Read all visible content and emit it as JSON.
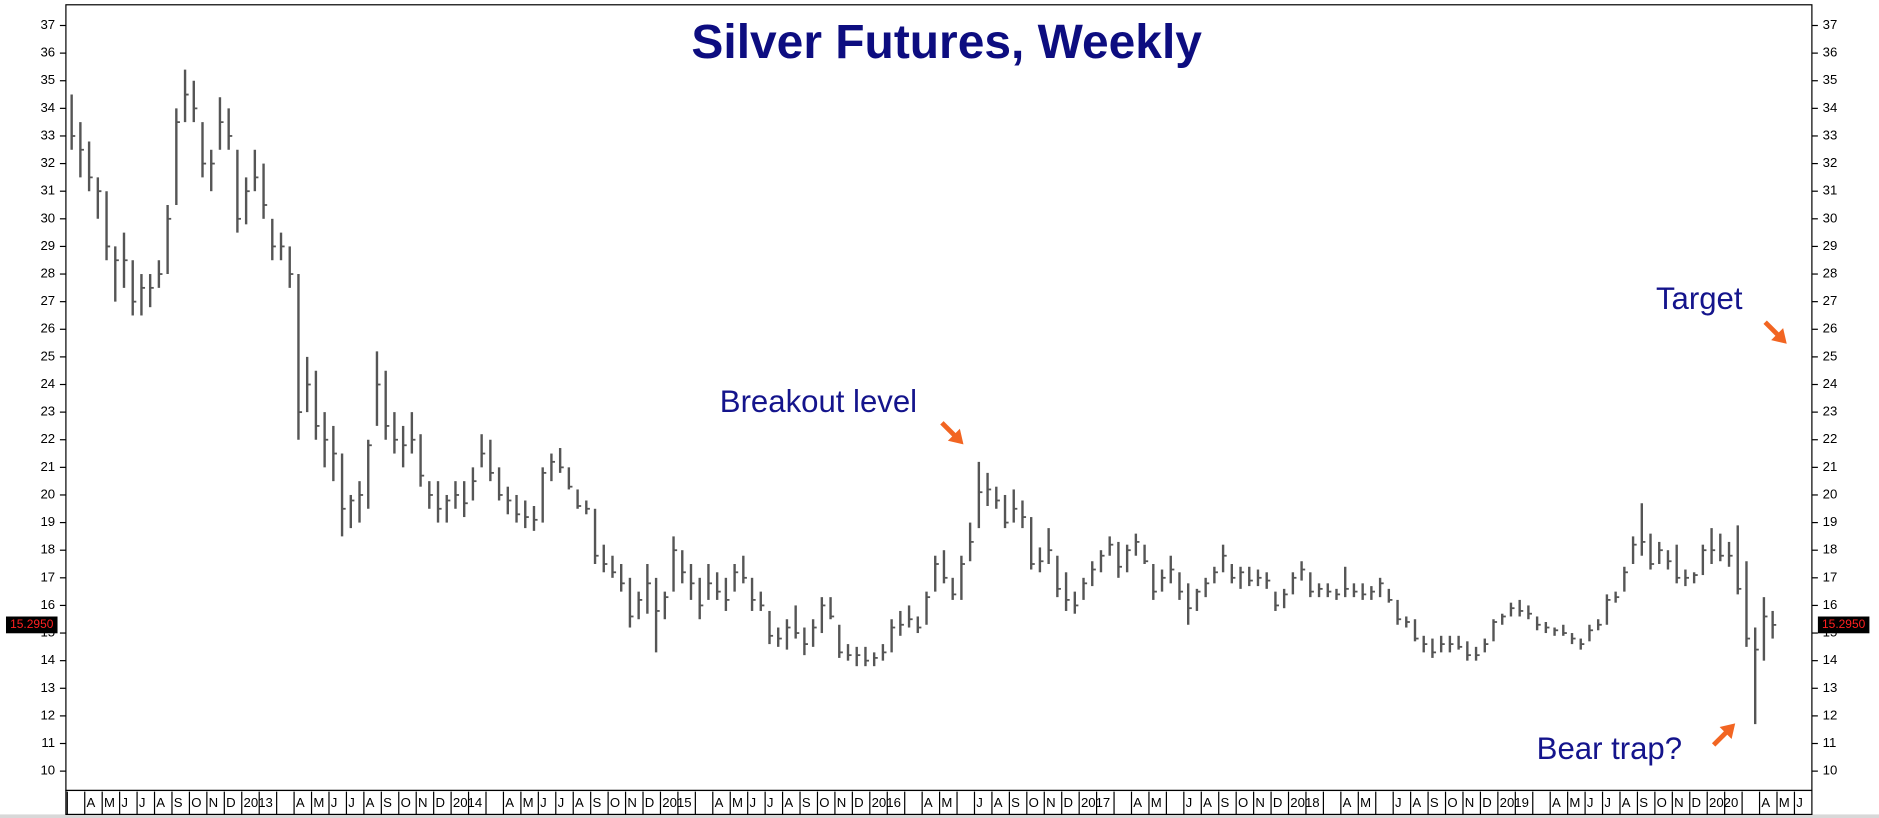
{
  "chart_data": {
    "type": "hlc",
    "title": "Silver Futures, Weekly",
    "color": "#555555",
    "categories": [
      "2",
      null,
      "A",
      "M",
      "J",
      "J",
      "A",
      "S",
      "O",
      "N",
      "D",
      "2013",
      null,
      null,
      "A",
      "M",
      "J",
      "J",
      "A",
      "S",
      "O",
      "N",
      "D",
      "2014",
      null,
      null,
      "A",
      "M",
      "J",
      "J",
      "A",
      "S",
      "O",
      "N",
      "D",
      "2015",
      null,
      null,
      "A",
      "M",
      "J",
      "J",
      "A",
      "S",
      "O",
      "N",
      "D",
      "2016",
      null,
      null,
      "A",
      "M",
      null,
      "J",
      "A",
      "S",
      "O",
      "N",
      "D",
      "2017",
      null,
      null,
      "A",
      "M",
      null,
      "J",
      "A",
      "S",
      "O",
      "N",
      "D",
      "2018",
      null,
      null,
      "A",
      "M",
      null,
      "J",
      "A",
      "S",
      "O",
      "N",
      "D",
      "2019",
      null,
      null,
      "A",
      "M",
      "J",
      "J",
      "A",
      "S",
      "O",
      "N",
      "D",
      "2020",
      null,
      null,
      "A",
      "M",
      "J"
    ],
    "high": [
      null,
      null,
      34.5,
      33.5,
      32.8,
      31.5,
      31,
      29,
      29.5,
      28.5,
      28,
      28,
      28.5,
      30.5,
      34,
      35.4,
      35,
      33.5,
      32.5,
      34.4,
      34,
      32.5,
      31.5,
      32.5,
      32,
      30,
      29.5,
      29,
      28,
      25,
      24.5,
      23,
      22.5,
      21.5,
      20,
      20.5,
      22,
      25.2,
      24.5,
      23,
      22.5,
      23,
      22.2,
      20.5,
      20.5,
      20,
      20.5,
      20.5,
      21,
      22.2,
      22,
      21,
      20.3,
      20,
      19.8,
      19.6,
      21,
      21.5,
      21.7,
      21,
      20.2,
      19.8,
      19.5,
      18.2,
      17.8,
      17.5,
      17,
      16.5,
      17.5,
      17,
      16.5,
      18.5,
      18,
      17.5,
      17,
      17.5,
      17.2,
      17,
      17.5,
      17.8,
      17,
      16.5,
      15.8,
      15.2,
      15.5,
      16,
      15.2,
      15.5,
      16.3,
      16.3,
      15.3,
      14.6,
      14.5,
      14.5,
      14.3,
      14.6,
      15.5,
      15.8,
      16,
      15.6,
      16.5,
      17.8,
      18,
      17,
      17.8,
      19,
      21.2,
      20.8,
      20.3,
      20,
      20.2,
      19.8,
      19.2,
      18.1,
      18.8,
      17.8,
      17.2,
      16.5,
      17,
      17.6,
      18,
      18.5,
      18.3,
      18.2,
      18.6,
      18.2,
      17.5,
      17.3,
      17.8,
      17.2,
      16.8,
      16.6,
      17,
      17.4,
      18.2,
      17.5,
      17.4,
      17.4,
      17.3,
      17.2,
      16.5,
      16.6,
      17.2,
      17.6,
      17.2,
      16.8,
      16.8,
      16.6,
      17.4,
      16.8,
      16.8,
      16.7,
      17,
      16.6,
      16.2,
      15.6,
      15.5,
      14.9,
      14.8,
      14.9,
      14.9,
      14.9,
      14.7,
      14.5,
      14.8,
      15.5,
      15.7,
      16.1,
      16.2,
      16,
      15.6,
      15.4,
      15.2,
      15.3,
      15,
      14.8,
      15.3,
      15.5,
      16.4,
      16.5,
      17.4,
      18.5,
      19.7,
      18.6,
      18.3,
      18,
      18.2,
      17.3,
      17.2,
      18.2,
      18.8,
      18.6,
      18.3,
      18.9,
      17.6,
      15.2,
      16.3,
      15.8,
      null,
      null,
      null,
      null
    ],
    "low": [
      null,
      null,
      32.5,
      31.5,
      31,
      30,
      28.5,
      27,
      27.5,
      26.5,
      26.5,
      26.8,
      27.5,
      28,
      30.5,
      33.5,
      33.5,
      31.5,
      31,
      32.5,
      32.5,
      29.5,
      29.8,
      31,
      30,
      28.5,
      28.5,
      27.5,
      22,
      23,
      22,
      21,
      20.5,
      18.5,
      18.8,
      19,
      19.5,
      22.5,
      22,
      21.5,
      21,
      21.5,
      20.3,
      19.5,
      19,
      19,
      19.5,
      19.2,
      19.8,
      21,
      20.5,
      19.8,
      19.3,
      19,
      18.8,
      18.7,
      19,
      20.5,
      20.8,
      20.2,
      19.5,
      19.3,
      17.5,
      17.2,
      17,
      16.5,
      15.2,
      15.5,
      15.7,
      14.3,
      15.5,
      16.5,
      16.8,
      16.2,
      15.5,
      16.2,
      16.2,
      15.8,
      16.5,
      16.8,
      15.8,
      15.8,
      14.6,
      14.5,
      14.4,
      14.8,
      14.2,
      14.5,
      15,
      15.5,
      14.1,
      14,
      13.8,
      13.8,
      13.8,
      14,
      14.3,
      14.9,
      15.2,
      15,
      15.3,
      16.5,
      16.8,
      16.2,
      16.2,
      17.6,
      18.8,
      19.6,
      19.5,
      18.8,
      19,
      18.8,
      17.3,
      17.2,
      17.5,
      16.3,
      15.8,
      15.7,
      16.2,
      16.7,
      17.2,
      17.8,
      17,
      17.2,
      17.8,
      17.5,
      16.2,
      16.5,
      16.8,
      16.2,
      15.3,
      15.8,
      16.3,
      16.8,
      17.2,
      16.8,
      16.6,
      16.7,
      16.7,
      16.6,
      15.8,
      15.9,
      16.4,
      16.9,
      16.3,
      16.3,
      16.3,
      16.2,
      16.3,
      16.3,
      16.2,
      16.2,
      16.3,
      16.1,
      15.3,
      15.2,
      14.7,
      14.3,
      14.1,
      14.3,
      14.3,
      14.4,
      14,
      14,
      14.3,
      14.7,
      15.3,
      15.6,
      15.6,
      15.5,
      15.1,
      15,
      14.9,
      14.9,
      14.6,
      14.4,
      14.7,
      15.1,
      15.3,
      16.1,
      16.5,
      17.5,
      17.8,
      17.3,
      17.5,
      17.3,
      16.8,
      16.7,
      16.8,
      17.1,
      17.5,
      17.6,
      17.4,
      16.4,
      14.5,
      11.7,
      14,
      14.8,
      null,
      null,
      null,
      null
    ],
    "close": [
      null,
      null,
      33,
      32.5,
      31.5,
      31,
      29,
      28.5,
      28.5,
      27,
      27.5,
      27.5,
      28,
      30,
      33.5,
      34.5,
      34,
      32,
      32,
      33.5,
      33,
      30,
      31,
      31.5,
      30.5,
      29,
      29,
      28,
      23,
      24,
      22.5,
      22,
      21.5,
      19.5,
      19.8,
      20,
      21.8,
      24,
      22.5,
      22,
      21.8,
      22,
      20.7,
      20,
      19.5,
      19.8,
      20,
      19.7,
      20.5,
      21.5,
      20.8,
      20,
      19.8,
      19.3,
      19.2,
      19.1,
      20.8,
      21.2,
      21,
      20.3,
      19.6,
      19.5,
      17.8,
      17.5,
      17.2,
      16.8,
      15.6,
      16.2,
      16.8,
      15.8,
      16.3,
      18,
      17.2,
      16.8,
      16,
      16.8,
      16.5,
      16.2,
      17.2,
      17,
      16.2,
      16,
      14.9,
      14.8,
      15.2,
      15,
      14.6,
      15.2,
      16,
      15.6,
      14.3,
      14.2,
      14.2,
      14,
      14.1,
      14.3,
      15.2,
      15.3,
      15.5,
      15.2,
      16.3,
      17.5,
      17,
      16.4,
      17.5,
      18.3,
      20.1,
      20.2,
      19.8,
      19,
      19.5,
      19.2,
      17.5,
      17.6,
      18,
      16.6,
      16.2,
      16,
      16.8,
      17.3,
      17.8,
      18.2,
      17.4,
      18,
      18.3,
      17.6,
      16.5,
      17,
      17.3,
      16.5,
      15.9,
      16.5,
      16.8,
      17.2,
      17.8,
      17,
      17.2,
      16.9,
      17,
      16.9,
      16,
      16.4,
      17,
      17.3,
      16.5,
      16.6,
      16.5,
      16.4,
      16.6,
      16.5,
      16.4,
      16.5,
      16.8,
      16.2,
      15.5,
      15.4,
      14.8,
      14.6,
      14.3,
      14.6,
      14.6,
      14.5,
      14.2,
      14.2,
      14.6,
      15.4,
      15.6,
      15.9,
      15.8,
      15.7,
      15.3,
      15.2,
      15.1,
      15,
      14.8,
      14.6,
      15.1,
      15.3,
      16.2,
      16.3,
      17.2,
      18.2,
      18.3,
      17.5,
      18,
      17.6,
      17,
      17,
      17.1,
      18,
      18,
      17.8,
      17.8,
      16.6,
      14.8,
      14.4,
      15.6,
      15.295,
      null,
      null,
      null,
      null
    ],
    "last_price": {
      "value": 15.295,
      "label": "15.2950"
    },
    "ylim": [
      9.3,
      37.75
    ],
    "yticks": [
      10,
      11,
      12,
      13,
      14,
      15,
      16,
      17,
      18,
      19,
      20,
      21,
      22,
      23,
      24,
      25,
      26,
      27,
      28,
      29,
      30,
      31,
      32,
      33,
      34,
      35,
      36,
      37
    ],
    "annotations": [
      "Breakout level",
      "Target",
      "Bear trap?"
    ]
  }
}
